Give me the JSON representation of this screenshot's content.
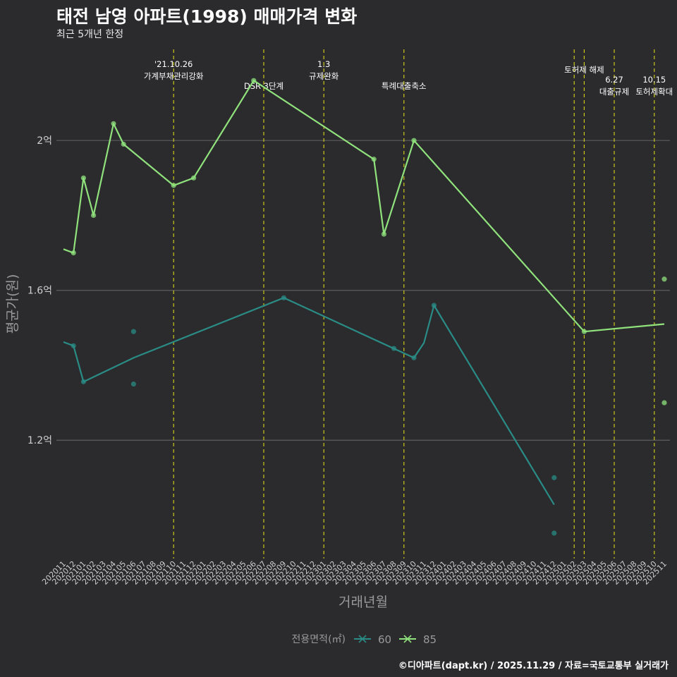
{
  "chart_data": {
    "type": "line",
    "title": "태전 남영 아파트(1998) 매매가격 변화",
    "subtitle": "최근 5개년 한정",
    "xlabel": "거래년월",
    "ylabel": "평균가(원)",
    "caption": "©디아파트(dapt.kr) / 2025.11.29 / 자료=국토교통부 실거래가",
    "legend_title": "전용면적(㎡)",
    "categories": [
      "202011",
      "202012",
      "202101",
      "202102",
      "202103",
      "202104",
      "202105",
      "202106",
      "202107",
      "202108",
      "202109",
      "202110",
      "202111",
      "202112",
      "202201",
      "202202",
      "202203",
      "202204",
      "202205",
      "202206",
      "202207",
      "202208",
      "202209",
      "202210",
      "202211",
      "202212",
      "202301",
      "202302",
      "202303",
      "202304",
      "202305",
      "202306",
      "202307",
      "202308",
      "202309",
      "202310",
      "202311",
      "202312",
      "202401",
      "202402",
      "202403",
      "202404",
      "202405",
      "202406",
      "202407",
      "202408",
      "202409",
      "202410",
      "202411",
      "202412",
      "202501",
      "202502",
      "202503",
      "202504",
      "202505",
      "202506",
      "202507",
      "202508",
      "202509",
      "202510",
      "202511"
    ],
    "y_ticks": [
      {
        "value": 1.2,
        "label": "1.2억"
      },
      {
        "value": 1.6,
        "label": "1.6억"
      },
      {
        "value": 2.0,
        "label": "2억"
      }
    ],
    "ylim": [
      0.888,
      2.262
    ],
    "series": [
      {
        "name": "60",
        "color": "#2a8c86",
        "line": [
          [
            "202011",
            1.462
          ],
          [
            "202012",
            1.452
          ],
          [
            "202101",
            1.356
          ],
          [
            "202106",
            1.42
          ],
          [
            "202209",
            1.58
          ],
          [
            "202310",
            1.42
          ],
          [
            "202311",
            1.46
          ],
          [
            "202312",
            1.56
          ],
          [
            "202412",
            1.028
          ]
        ],
        "points": [
          [
            "202012",
            1.452
          ],
          [
            "202101",
            1.356
          ],
          [
            "202106",
            1.49
          ],
          [
            "202106",
            1.35
          ],
          [
            "202209",
            1.58
          ],
          [
            "202308",
            1.445
          ],
          [
            "202310",
            1.42
          ],
          [
            "202312",
            1.56
          ],
          [
            "202412",
            1.1
          ],
          [
            "202412",
            0.952
          ]
        ]
      },
      {
        "name": "85",
        "color": "#8fe27c",
        "line": [
          [
            "202011",
            1.71
          ],
          [
            "202012",
            1.7
          ],
          [
            "202101",
            1.9
          ],
          [
            "202102",
            1.8
          ],
          [
            "202104",
            2.045
          ],
          [
            "202105",
            1.99
          ],
          [
            "202110",
            1.88
          ],
          [
            "202112",
            1.9
          ],
          [
            "202206",
            2.16
          ],
          [
            "202306",
            1.95
          ],
          [
            "202307",
            1.75
          ],
          [
            "202310",
            2.0
          ],
          [
            "202503",
            1.49
          ],
          [
            "202511",
            1.51
          ]
        ],
        "points": [
          [
            "202012",
            1.7
          ],
          [
            "202101",
            1.9
          ],
          [
            "202102",
            1.8
          ],
          [
            "202104",
            2.045
          ],
          [
            "202105",
            1.99
          ],
          [
            "202110",
            1.88
          ],
          [
            "202112",
            1.9
          ],
          [
            "202206",
            2.16
          ],
          [
            "202306",
            1.95
          ],
          [
            "202307",
            1.75
          ],
          [
            "202310",
            2.0
          ],
          [
            "202503",
            1.49
          ],
          [
            "202511",
            1.63
          ],
          [
            "202511",
            1.3
          ]
        ]
      }
    ],
    "events": [
      {
        "x": "202110",
        "lines": [
          "'21.10.26",
          "가계부채관리강화"
        ],
        "row": 0
      },
      {
        "x": "202207",
        "lines": [
          "DSR 3단계"
        ],
        "row": 2
      },
      {
        "x": "202301",
        "lines": [
          "1.3",
          "규제완화"
        ],
        "row": 0
      },
      {
        "x": "202309",
        "lines": [
          "특례대출축소"
        ],
        "row": 2
      },
      {
        "x": "202502",
        "lines": [],
        "row": 1
      },
      {
        "x": "202503",
        "lines": [
          "토허제 해제"
        ],
        "row": 1
      },
      {
        "x": "202506",
        "lines": [
          "6.27",
          "대출규제"
        ],
        "row": 3
      },
      {
        "x": "202510",
        "lines": [
          "10.15",
          "토허제확대"
        ],
        "row": 3
      }
    ]
  }
}
